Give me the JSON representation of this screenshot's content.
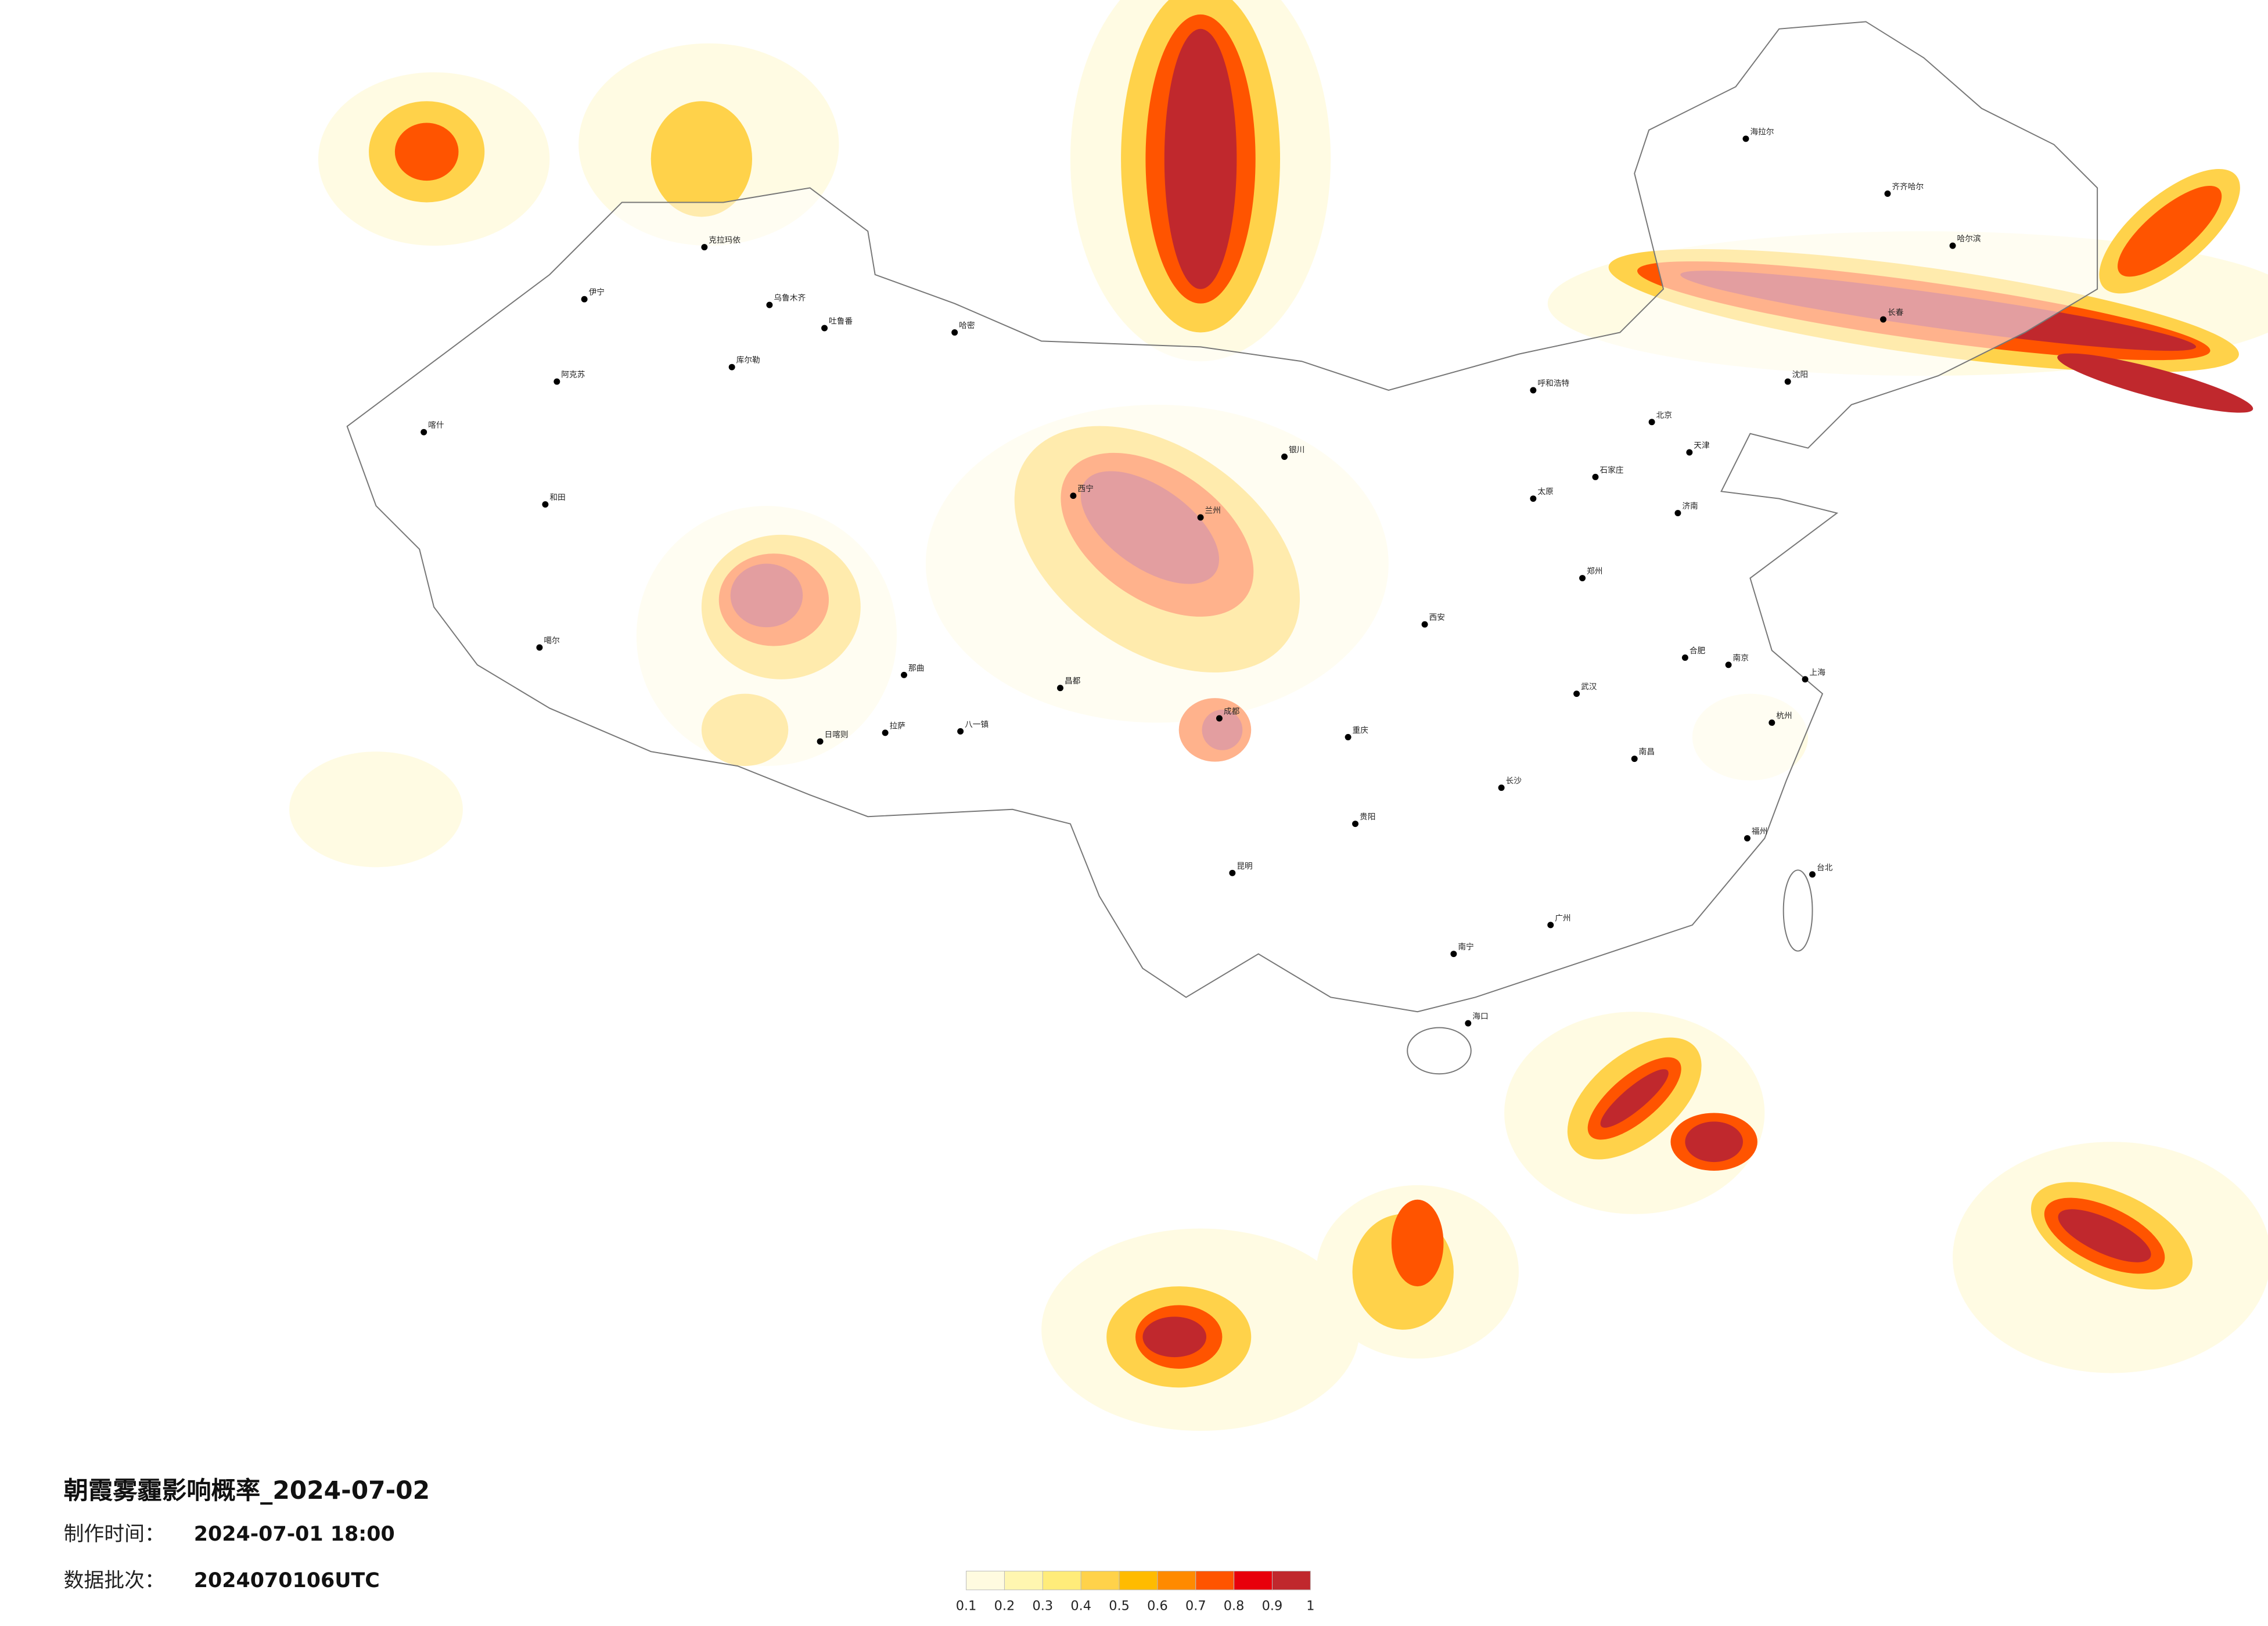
{
  "title": "朝霞雾霾影响概率_2024-07-02",
  "made_label": "制作时间：",
  "made_time": "2024-07-01 18:00",
  "batch_label": "数据批次：",
  "batch": "2024070106UTC",
  "legend": {
    "ticks": [
      0.1,
      0.2,
      0.3,
      0.4,
      0.5,
      0.6,
      0.7,
      0.8,
      0.9,
      1
    ],
    "colors": [
      "#fffbe0",
      "#fff6b0",
      "#ffec7a",
      "#ffd24a",
      "#ffbb00",
      "#ff8a00",
      "#ff5400",
      "#e8000b",
      "#c0282d"
    ]
  },
  "cities": [
    "克拉玛依",
    "乌鲁木齐",
    "伊宁",
    "阿克苏",
    "喀什",
    "和田",
    "吐鲁番",
    "库尔勒",
    "哈密",
    "噶尔",
    "日喀则",
    "拉萨",
    "那曲",
    "八一镇",
    "昌都",
    "西宁",
    "兰州",
    "银川",
    "成都",
    "重庆",
    "贵阳",
    "昆明",
    "南宁",
    "广州",
    "长沙",
    "武汉",
    "郑州",
    "西安",
    "北京",
    "天津",
    "石家庄",
    "太原",
    "济南",
    "上海",
    "南京",
    "杭州",
    "福州",
    "台北",
    "海口",
    "呼和浩特",
    "沈阳",
    "长春",
    "哈尔滨",
    "齐齐哈尔",
    "海拉尔",
    "南昌",
    "合肥"
  ]
}
